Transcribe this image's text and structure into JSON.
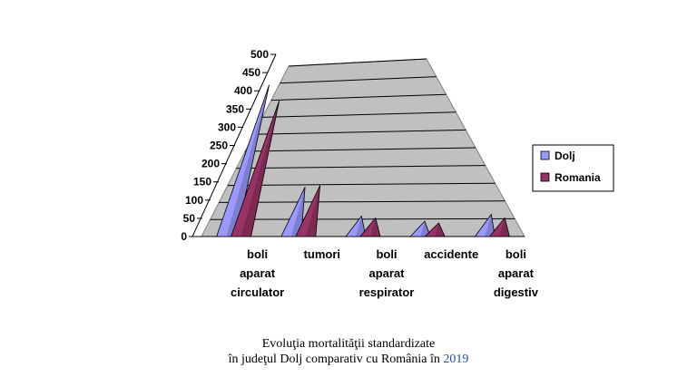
{
  "chart_data": {
    "type": "area",
    "style": "3d-cone",
    "categories": [
      [
        "boli",
        "aparat",
        "circulator"
      ],
      [
        "tumori"
      ],
      [
        "boli",
        "aparat",
        "respirator"
      ],
      [
        "accidente"
      ],
      [
        "boli",
        "aparat",
        "digestiv"
      ]
    ],
    "series": [
      {
        "name": "Dolj",
        "color": "#9999ff",
        "values": [
          445,
          145,
          60,
          45,
          65
        ]
      },
      {
        "name": "Romania",
        "color": "#993366",
        "values": [
          400,
          150,
          55,
          40,
          55
        ]
      }
    ],
    "ylim": [
      0,
      500
    ],
    "yticks": [
      0,
      50,
      100,
      150,
      200,
      250,
      300,
      350,
      400,
      450,
      500
    ],
    "grid": true,
    "legend_position": "right"
  },
  "caption": {
    "line1": "Evoluţia mortalităţii standardizate",
    "line2_prefix": "în judeţul Dolj comparativ cu România în",
    "line2_year": "2019"
  }
}
